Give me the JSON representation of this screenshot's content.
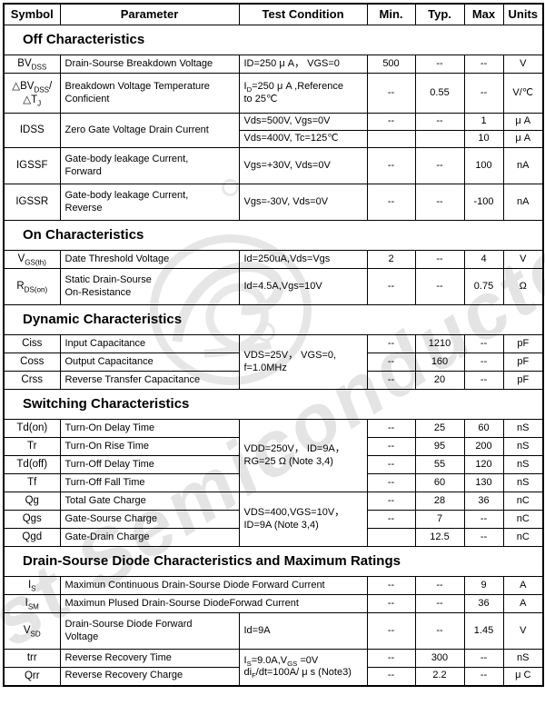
{
  "watermark": {
    "text": "First Semiconductor",
    "color": "#e4e4e4"
  },
  "table": {
    "headers": {
      "symbol": "Symbol",
      "parameter": "Parameter",
      "test": "Test Condition",
      "min": "Min.",
      "typ": "Typ.",
      "max": "Max",
      "units": "Units"
    },
    "sections": [
      {
        "title": "Off Characteristics",
        "rows": [
          {
            "symbol": "BV~DSS~",
            "parameter": "Drain-Sourse Breakdown Voltage",
            "test": "ID=250 μ A， VGS=0",
            "min": "500",
            "typ": "--",
            "max": "--",
            "units": "V"
          },
          {
            "symbol": "△BV~DSS~/ △T~J~",
            "parameter": "Breakdown Voltage Temperature Conficient",
            "test": "I~D~=250 μ A ,Reference\nto 25℃",
            "min": "--",
            "typ": "0.55",
            "max": "--",
            "units": "V/℃"
          },
          {
            "symbol": "IDSS",
            "parameter": "Zero Gate Voltage Drain Current",
            "test": "Vds=500V, Vgs=0V",
            "min": "--",
            "typ": "--",
            "max": "1",
            "units": "μ A"
          },
          {
            "test": "Vds=400V, Tc=125℃",
            "min": "",
            "typ": "",
            "max": "10",
            "units": "μ A"
          },
          {
            "symbol": "IGSSF",
            "parameter": "Gate-body leakage Current,\nForward",
            "test": "Vgs=+30V, Vds=0V",
            "min": "--",
            "typ": "--",
            "max": "100",
            "units": "nA"
          },
          {
            "symbol": "IGSSR",
            "parameter": "Gate-body leakage Current,\nReverse",
            "test": "Vgs=-30V, Vds=0V",
            "min": "--",
            "typ": "--",
            "max": "-100",
            "units": "nA"
          }
        ]
      },
      {
        "title": "On Characteristics",
        "rows": [
          {
            "symbol": "V~GS(th)~",
            "parameter": "Date Threshold Voltage",
            "test": "Id=250uA,Vds=Vgs",
            "min": "2",
            "typ": "--",
            "max": "4",
            "units": "V"
          },
          {
            "symbol": "R~DS(on)~",
            "parameter": "Static Drain-Sourse\nOn-Resistance",
            "test": "Id=4.5A,Vgs=10V",
            "min": "--",
            "typ": "--",
            "max": "0.75",
            "units": "Ω"
          }
        ]
      },
      {
        "title": "Dynamic Characteristics",
        "rows": [
          {
            "symbol": "Ciss",
            "parameter": "Input Capacitance",
            "test": "VDS=25V， VGS=0,\nf=1.0MHz",
            "min": "--",
            "typ": "1210",
            "max": "--",
            "units": "pF"
          },
          {
            "symbol": "Coss",
            "parameter": "Output Capacitance",
            "min": "--",
            "typ": "160",
            "max": "--",
            "units": "pF"
          },
          {
            "symbol": "Crss",
            "parameter": "Reverse Transfer Capacitance",
            "min": "--",
            "typ": "20",
            "max": "--",
            "units": "pF"
          }
        ]
      },
      {
        "title": "Switching Characteristics",
        "rows": [
          {
            "symbol": "Td(on)",
            "parameter": "Turn-On Delay Time",
            "test": "VDD=250V， ID=9A，\nRG=25 Ω (Note 3,4)",
            "min": "--",
            "typ": "25",
            "max": "60",
            "units": "nS"
          },
          {
            "symbol": "Tr",
            "parameter": "Turn-On Rise Time",
            "min": "--",
            "typ": "95",
            "max": "200",
            "units": "nS"
          },
          {
            "symbol": "Td(off)",
            "parameter": "Turn-Off Delay Time",
            "min": "--",
            "typ": "55",
            "max": "120",
            "units": "nS"
          },
          {
            "symbol": "Tf",
            "parameter": "Turn-Off Fall Time",
            "min": "--",
            "typ": "60",
            "max": "130",
            "units": "nS"
          },
          {
            "symbol": "Qg",
            "parameter": "Total Gate Charge",
            "test": "VDS=400,VGS=10V，\nID=9A (Note 3,4)",
            "min": "--",
            "typ": "28",
            "max": "36",
            "units": "nC"
          },
          {
            "symbol": "Qgs",
            "parameter": "Gate-Sourse Charge",
            "min": "--",
            "typ": "7",
            "max": "--",
            "units": "nC"
          },
          {
            "symbol": "Qgd",
            "parameter": "Gate-Drain Charge",
            "min": "",
            "typ": "12.5",
            "max": "--",
            "units": "nC"
          }
        ]
      },
      {
        "title": "Drain-Sourse Diode Characteristics and Maximum Ratings",
        "rows": [
          {
            "symbol": "I~S~",
            "parameter": "Maximun Continuous Drain-Sourse Diode Forward Current",
            "min": "--",
            "typ": "--",
            "max": "9",
            "units": "A"
          },
          {
            "symbol": "I~SM~",
            "parameter": "Maximun Plused Drain-Sourse DiodeForwad Current",
            "min": "--",
            "typ": "--",
            "max": "36",
            "units": "A"
          },
          {
            "symbol": "V~SD~",
            "parameter": "Drain-Sourse Diode Forward\nVoltage",
            "test": "Id=9A",
            "min": "--",
            "typ": "--",
            "max": "1.45",
            "units": "V"
          },
          {
            "symbol": "trr",
            "parameter": "Reverse Recovery Time",
            "test": "I~S~=9.0A,V~GS~ =0V\ndi~F~/dt=100A/ μ s (Note3)",
            "min": "--",
            "typ": "300",
            "max": "--",
            "units": "nS"
          },
          {
            "symbol": "Qrr",
            "parameter": "Reverse Recovery Charge",
            "min": "--",
            "typ": "2.2",
            "max": "--",
            "units": "μ C"
          }
        ]
      }
    ]
  }
}
